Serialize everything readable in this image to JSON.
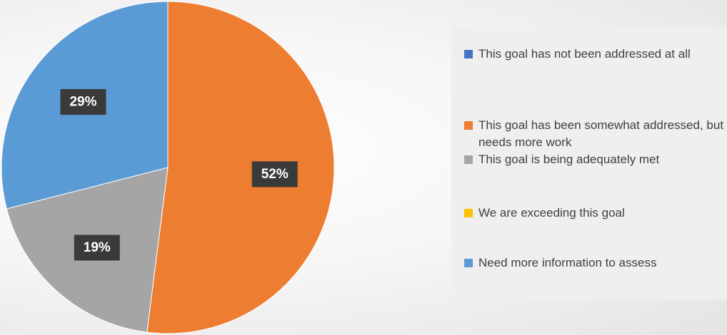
{
  "chart_data": {
    "type": "pie",
    "categories": [
      "This goal has not been addressed at all",
      "This goal has been somewhat addressed, but needs more work",
      "This goal is being adequately met",
      "We are exceeding this goal",
      "Need more information to assess"
    ],
    "values": [
      0,
      52,
      19,
      0,
      29
    ],
    "value_labels": [
      "",
      "52%",
      "19%",
      "",
      "29%"
    ],
    "colors": [
      "#4472C4",
      "#ED7D31",
      "#A5A5A5",
      "#FFC000",
      "#5B9BD5"
    ],
    "legend_position": "right"
  }
}
